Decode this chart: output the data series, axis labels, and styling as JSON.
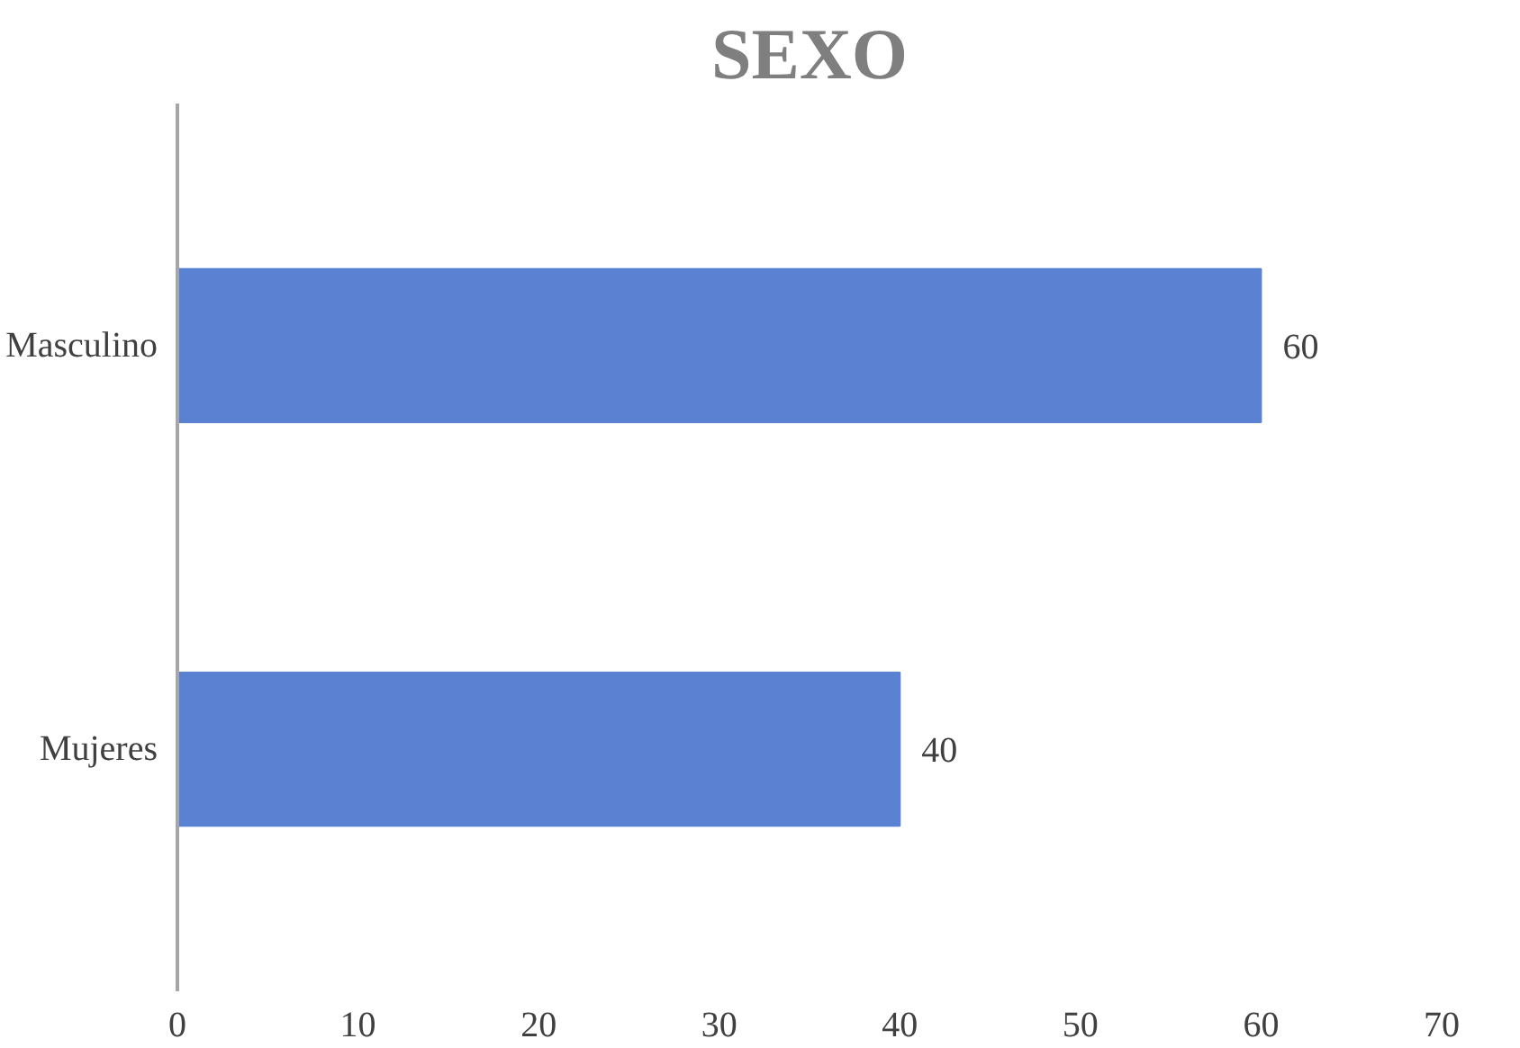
{
  "chart_data": {
    "type": "bar",
    "orientation": "horizontal",
    "title": "SEXO",
    "categories": [
      "Masculino",
      "Mujeres"
    ],
    "values": [
      60,
      40
    ],
    "color": "#5b82d2",
    "xlim": [
      0,
      70
    ],
    "xticks": [
      0,
      10,
      20,
      30,
      40,
      50,
      60,
      70
    ],
    "data_labels": true,
    "grid": false
  }
}
